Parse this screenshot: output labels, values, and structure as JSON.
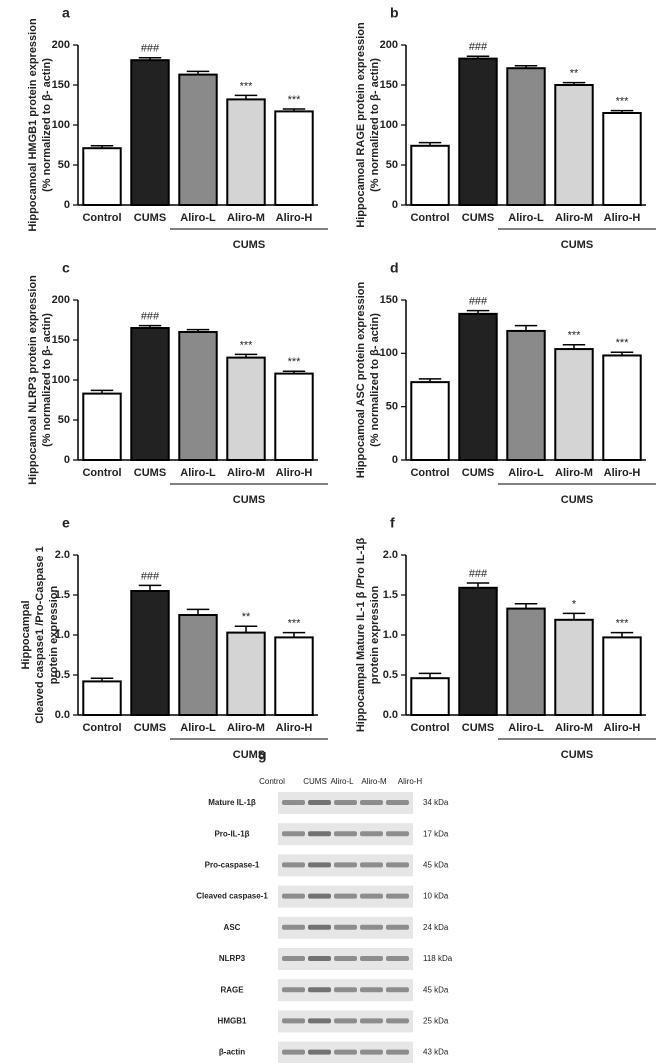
{
  "chart_data": [
    {
      "type": "bar",
      "panel_label": "a",
      "ylabel": [
        "Hippocamoal HMGB1 protein expression",
        "(% normalized to β- actin)"
      ],
      "categories": [
        "Control",
        "CUMS",
        "Aliro-L",
        "Aliro-M",
        "Aliro-H"
      ],
      "group_label": "CUMS",
      "values": [
        71,
        181,
        163,
        132,
        117
      ],
      "errors": [
        3,
        3,
        4,
        5,
        3
      ],
      "annotations": [
        null,
        "###",
        null,
        "***",
        "***"
      ],
      "colors": [
        "#ffffff",
        "#222222",
        "#8a8a8a",
        "#d4d4d4",
        "#ffffff"
      ],
      "ylim": [
        0,
        200
      ],
      "yticks": [
        0,
        50,
        100,
        150,
        200
      ]
    },
    {
      "type": "bar",
      "panel_label": "b",
      "ylabel": [
        "Hippocamoal RAGE protein expression",
        "(% normalized to β- actin)"
      ],
      "categories": [
        "Control",
        "CUMS",
        "Aliro-L",
        "Aliro-M",
        "Aliro-H"
      ],
      "group_label": "CUMS",
      "values": [
        74,
        183,
        171,
        150,
        115
      ],
      "errors": [
        4,
        3,
        3,
        3,
        3
      ],
      "annotations": [
        null,
        "###",
        null,
        "**",
        "***"
      ],
      "colors": [
        "#ffffff",
        "#222222",
        "#8a8a8a",
        "#d4d4d4",
        "#ffffff"
      ],
      "ylim": [
        0,
        200
      ],
      "yticks": [
        0,
        50,
        100,
        150,
        200
      ]
    },
    {
      "type": "bar",
      "panel_label": "c",
      "ylabel": [
        "Hippocamoal NLRP3 protein expression",
        "(% normalized to β- actin)"
      ],
      "categories": [
        "Control",
        "CUMS",
        "Aliro-L",
        "Aliro-M",
        "Aliro-H"
      ],
      "group_label": "CUMS",
      "values": [
        83,
        165,
        160,
        128,
        108
      ],
      "errors": [
        4,
        3,
        3,
        4,
        3
      ],
      "annotations": [
        null,
        "###",
        null,
        "***",
        "***"
      ],
      "colors": [
        "#ffffff",
        "#222222",
        "#8a8a8a",
        "#d4d4d4",
        "#ffffff"
      ],
      "ylim": [
        0,
        200
      ],
      "yticks": [
        0,
        50,
        100,
        150,
        200
      ]
    },
    {
      "type": "bar",
      "panel_label": "d",
      "ylabel": [
        "Hippocamoal ASC protein expression",
        "(% normalized to β- actin)"
      ],
      "categories": [
        "Control",
        "CUMS",
        "Aliro-L",
        "Aliro-M",
        "Aliro-H"
      ],
      "group_label": "CUMS",
      "values": [
        73,
        137,
        121,
        104,
        98
      ],
      "errors": [
        3,
        3,
        5,
        4,
        3
      ],
      "annotations": [
        null,
        "###",
        null,
        "***",
        "***"
      ],
      "colors": [
        "#ffffff",
        "#222222",
        "#8a8a8a",
        "#d4d4d4",
        "#ffffff"
      ],
      "ylim": [
        0,
        150
      ],
      "yticks": [
        0,
        50,
        100,
        150
      ]
    },
    {
      "type": "bar",
      "panel_label": "e",
      "ylabel": [
        "Hippocampal",
        "Cleaved caspase1 /Pro-Caspase 1",
        "protein expression"
      ],
      "categories": [
        "Control",
        "CUMS",
        "Aliro-L",
        "Aliro-M",
        "Aliro-H"
      ],
      "group_label": "CUMS",
      "values": [
        0.42,
        1.55,
        1.25,
        1.03,
        0.97
      ],
      "errors": [
        0.04,
        0.07,
        0.07,
        0.08,
        0.06
      ],
      "annotations": [
        null,
        "###",
        null,
        "**",
        "***"
      ],
      "colors": [
        "#ffffff",
        "#222222",
        "#8a8a8a",
        "#d4d4d4",
        "#ffffff"
      ],
      "ylim": [
        0,
        2
      ],
      "yticks": [
        {
          "value": 0,
          "label": "0.0"
        },
        0.5,
        {
          "value": 1,
          "label": "1.0"
        },
        1.5,
        {
          "value": 2,
          "label": "2.0"
        }
      ]
    },
    {
      "type": "bar",
      "panel_label": "f",
      "ylabel": [
        "Hippocampal Mature IL-1 β /Pro IL-1β",
        "protein expression"
      ],
      "categories": [
        "Control",
        "CUMS",
        "Aliro-L",
        "Aliro-M",
        "Aliro-H"
      ],
      "group_label": "CUMS",
      "values": [
        0.46,
        1.59,
        1.33,
        1.19,
        0.97
      ],
      "errors": [
        0.06,
        0.06,
        0.06,
        0.08,
        0.06
      ],
      "annotations": [
        null,
        "###",
        null,
        "*",
        "***"
      ],
      "colors": [
        "#ffffff",
        "#222222",
        "#8a8a8a",
        "#d4d4d4",
        "#ffffff"
      ],
      "ylim": [
        0,
        2
      ],
      "yticks": [
        {
          "value": 0,
          "label": "0.0"
        },
        0.5,
        {
          "value": 1,
          "label": "1.0"
        },
        1.5,
        {
          "value": 2,
          "label": "2.0"
        }
      ]
    }
  ],
  "blot": {
    "panel_label": "g",
    "lanes": [
      "Control",
      "CUMS",
      "Aliro-L",
      "Aliro-M",
      "Aliro-H"
    ],
    "proteins": [
      "Mature IL-1β",
      "Pro-IL-1β",
      "Pro-caspase-1",
      "Cleaved caspase-1",
      "ASC",
      "NLRP3",
      "RAGE",
      "HMGB1",
      "β-actin"
    ],
    "sizes": [
      "34 kDa",
      "17 kDa",
      "45 kDa",
      "10 kDa",
      "24 kDa",
      "118 kDa",
      "45 kDa",
      "25 kDa",
      "43 kDa"
    ]
  }
}
